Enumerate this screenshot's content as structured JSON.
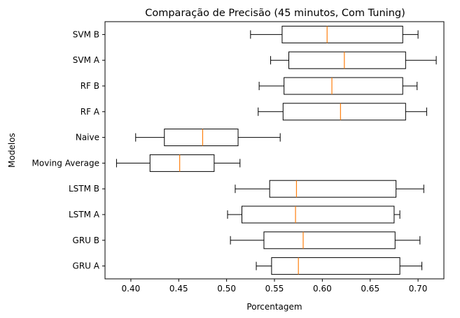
{
  "chart_data": {
    "type": "boxplot",
    "orientation": "horizontal",
    "title": "Comparação de Precisão (45 minutos, Com Tuning)",
    "xlabel": "Porcentagem",
    "ylabel": "Modelos",
    "xlim": [
      0.373,
      0.727
    ],
    "xticks": [
      "0.40",
      "0.45",
      "0.50",
      "0.55",
      "0.60",
      "0.65",
      "0.70"
    ],
    "grid": false,
    "colors": {
      "box": "#000000",
      "median": "#ff7f0e"
    },
    "series": [
      {
        "name": "GRU A",
        "whisker_low": 0.531,
        "q1": 0.547,
        "median": 0.575,
        "q3": 0.681,
        "whisker_high": 0.704
      },
      {
        "name": "GRU B",
        "whisker_low": 0.504,
        "q1": 0.539,
        "median": 0.58,
        "q3": 0.676,
        "whisker_high": 0.702
      },
      {
        "name": "LSTM A",
        "whisker_low": 0.501,
        "q1": 0.516,
        "median": 0.572,
        "q3": 0.675,
        "whisker_high": 0.681
      },
      {
        "name": "LSTM B",
        "whisker_low": 0.509,
        "q1": 0.545,
        "median": 0.573,
        "q3": 0.677,
        "whisker_high": 0.706
      },
      {
        "name": "Moving Average",
        "whisker_low": 0.385,
        "q1": 0.42,
        "median": 0.451,
        "q3": 0.487,
        "whisker_high": 0.514
      },
      {
        "name": "Naive",
        "whisker_low": 0.405,
        "q1": 0.435,
        "median": 0.475,
        "q3": 0.512,
        "whisker_high": 0.556
      },
      {
        "name": "RF A",
        "whisker_low": 0.533,
        "q1": 0.559,
        "median": 0.619,
        "q3": 0.687,
        "whisker_high": 0.709
      },
      {
        "name": "RF B",
        "whisker_low": 0.534,
        "q1": 0.56,
        "median": 0.61,
        "q3": 0.684,
        "whisker_high": 0.699
      },
      {
        "name": "SVM A",
        "whisker_low": 0.546,
        "q1": 0.565,
        "median": 0.623,
        "q3": 0.687,
        "whisker_high": 0.719
      },
      {
        "name": "SVM B",
        "whisker_low": 0.525,
        "q1": 0.558,
        "median": 0.605,
        "q3": 0.684,
        "whisker_high": 0.7
      }
    ]
  }
}
